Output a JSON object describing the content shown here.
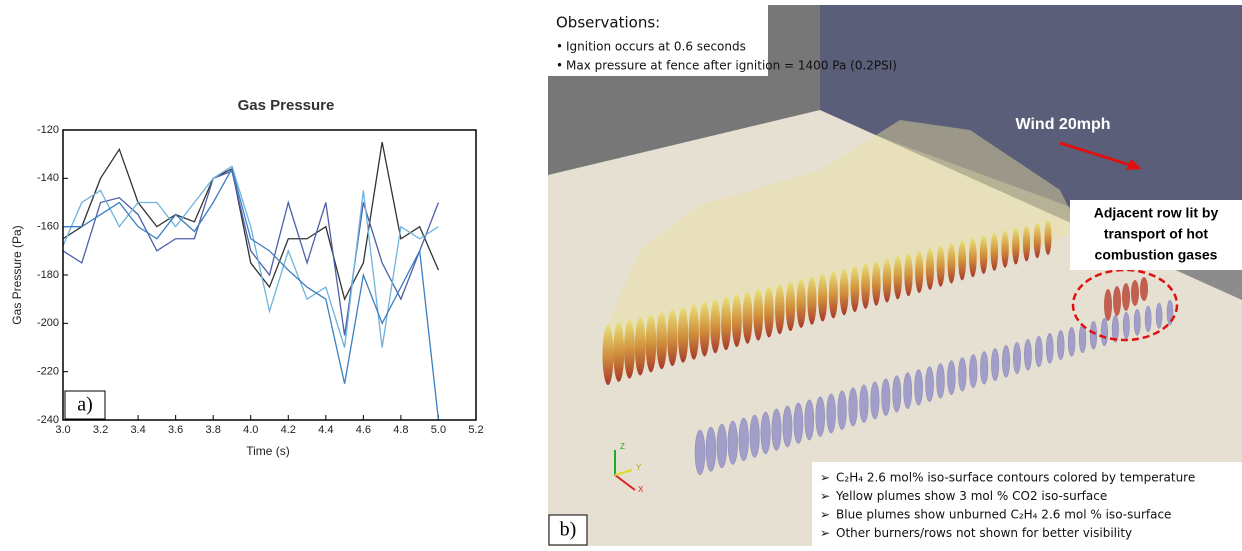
{
  "chart_data": {
    "type": "line",
    "title": "Gas Pressure",
    "xlabel": "Time (s)",
    "ylabel": "Gas Pressure (Pa)",
    "panel_label": "a)",
    "x": [
      3.0,
      3.1,
      3.2,
      3.3,
      3.4,
      3.5,
      3.6,
      3.7,
      3.8,
      3.9,
      4.0,
      4.1,
      4.2,
      4.3,
      4.4,
      4.5,
      4.6,
      4.7,
      4.8,
      4.9,
      5.0
    ],
    "series": [
      {
        "color": "#333333",
        "values": [
          -165,
          -160,
          -140,
          -128,
          -150,
          -160,
          -155,
          -158,
          -140,
          -136,
          -175,
          -185,
          -165,
          -165,
          -160,
          -190,
          -175,
          -125,
          -165,
          -160,
          -178
        ]
      },
      {
        "color": "#4e5fa8",
        "values": [
          -170,
          -175,
          -150,
          -148,
          -155,
          -170,
          -165,
          -165,
          -140,
          -137,
          -170,
          -180,
          -150,
          -175,
          -150,
          -205,
          -150,
          -175,
          -190,
          -170,
          -150
        ]
      },
      {
        "color": "#6db3dc",
        "values": [
          -168,
          -150,
          -145,
          -160,
          -150,
          -150,
          -160,
          -150,
          -140,
          -135,
          -160,
          -195,
          -170,
          -190,
          -185,
          -210,
          -145,
          -210,
          -160,
          -165,
          -160
        ]
      },
      {
        "color": "#3b7fc2",
        "values": [
          -160,
          -160,
          -155,
          -150,
          -160,
          -165,
          -155,
          -162,
          -150,
          -136,
          -165,
          -170,
          -178,
          -185,
          -190,
          -225,
          -180,
          -200,
          -185,
          -170,
          -240
        ]
      }
    ],
    "xlim": [
      3.0,
      5.2
    ],
    "ylim": [
      -240,
      -120
    ],
    "xticks": [
      {
        "value": 3,
        "label": "3.0"
      },
      3.2,
      3.4,
      3.6,
      3.8,
      {
        "value": 4,
        "label": "4.0"
      },
      4.2,
      4.4,
      4.6,
      4.8,
      {
        "value": 5,
        "label": "5.0"
      },
      5.2
    ],
    "yticks": [
      -240,
      -220,
      -200,
      -180,
      -160,
      -140,
      -120
    ],
    "grid": false
  },
  "render": {
    "panel_label": "b)",
    "observations": {
      "title": "Observations:",
      "items": [
        "Ignition occurs at 0.6 seconds",
        "Max pressure at fence after ignition  = 1400 Pa (0.2PSI)"
      ]
    },
    "wind_label": "Wind 20mph",
    "callout": [
      "Adjacent row lit by",
      "transport of hot",
      "combustion gases"
    ],
    "axis_labels": [
      "Z",
      "Y",
      "X"
    ],
    "notes": [
      "C₂H₄ 2.6 mol% iso-surface contours colored by temperature",
      "Yellow plumes show 3 mol % CO2 iso-surface",
      "Blue plumes show unburned C₂H₄  2.6 mol % iso-surface",
      "Other burners/rows not shown for better visibility"
    ]
  }
}
